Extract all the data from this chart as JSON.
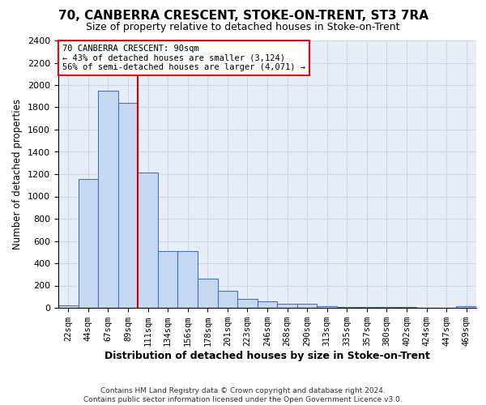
{
  "title": "70, CANBERRA CRESCENT, STOKE-ON-TRENT, ST3 7RA",
  "subtitle": "Size of property relative to detached houses in Stoke-on-Trent",
  "xlabel": "Distribution of detached houses by size in Stoke-on-Trent",
  "ylabel": "Number of detached properties",
  "categories": [
    "22sqm",
    "44sqm",
    "67sqm",
    "89sqm",
    "111sqm",
    "134sqm",
    "156sqm",
    "178sqm",
    "201sqm",
    "223sqm",
    "246sqm",
    "268sqm",
    "290sqm",
    "313sqm",
    "335sqm",
    "357sqm",
    "380sqm",
    "402sqm",
    "424sqm",
    "447sqm",
    "469sqm"
  ],
  "values": [
    25,
    1155,
    1950,
    1840,
    1215,
    510,
    510,
    265,
    150,
    80,
    55,
    40,
    40,
    15,
    10,
    8,
    5,
    5,
    3,
    3,
    18
  ],
  "bar_color": "#c6d9f0",
  "bar_edge_color": "#4472c4",
  "property_line_index": 3,
  "annotation_text": "70 CANBERRA CRESCENT: 90sqm\n← 43% of detached houses are smaller (3,124)\n56% of semi-detached houses are larger (4,071) →",
  "annotation_box_color": "white",
  "annotation_box_edge_color": "red",
  "ylim": [
    0,
    2400
  ],
  "yticks": [
    0,
    200,
    400,
    600,
    800,
    1000,
    1200,
    1400,
    1600,
    1800,
    2000,
    2200,
    2400
  ],
  "red_line_color": "#cc0000",
  "grid_color": "#d0d8e8",
  "background_color": "#e8eef8",
  "footer1": "Contains HM Land Registry data © Crown copyright and database right 2024.",
  "footer2": "Contains public sector information licensed under the Open Government Licence v3.0."
}
